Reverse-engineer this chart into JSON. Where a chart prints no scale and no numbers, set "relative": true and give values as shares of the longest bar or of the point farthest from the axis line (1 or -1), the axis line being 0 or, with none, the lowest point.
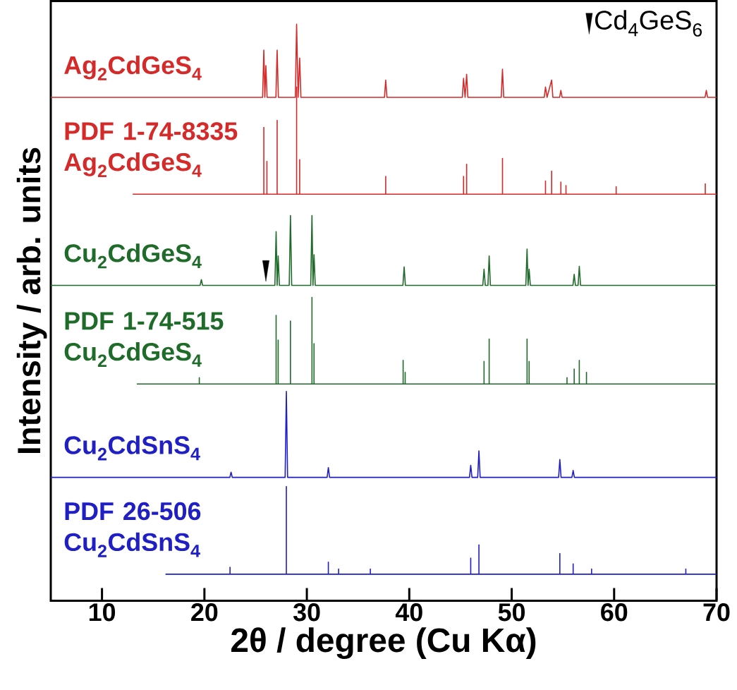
{
  "chart_data": {
    "type": "line",
    "relative": true,
    "xlabel": "2θ / degree (Cu Kα)",
    "ylabel": "Intensity / arb. units",
    "xlim": [
      5,
      70
    ],
    "xticks": [
      10,
      20,
      30,
      40,
      50,
      60,
      70
    ],
    "legend": "top right",
    "series": [
      {
        "name": "Ag$_{2}$CdGeS$_{4}$",
        "color": "#d42a2a",
        "x": [
          5,
          25.68,
          25.8,
          25.9,
          26.0,
          26.12,
          26.98,
          27.1,
          27.22,
          28.88,
          29.0,
          29.15,
          29.3,
          29.42,
          37.58,
          37.7,
          37.82,
          45.18,
          45.3,
          45.45,
          45.6,
          45.72,
          48.98,
          49.1,
          49.22,
          53.18,
          53.3,
          53.45,
          53.9,
          54.02,
          54.68,
          54.8,
          54.92,
          68.88,
          69.0,
          69.12,
          70
        ],
        "values": [
          0.873,
          0.873,
          0.955,
          0.873,
          0.928,
          0.873,
          0.873,
          0.955,
          0.873,
          0.873,
          1,
          0.873,
          0.941,
          0.873,
          0.873,
          0.903,
          0.873,
          0.873,
          0.906,
          0.873,
          0.913,
          0.873,
          0.873,
          0.922,
          0.873,
          0.873,
          0.891,
          0.873,
          0.903,
          0.873,
          0.873,
          0.885,
          0.873,
          0.873,
          0.885,
          0.873,
          0.873
        ]
      },
      {
        "name": "PDF 1-74-8335 Ag$_{2}$CdGeS$_{4}$",
        "color": "#d42a2a",
        "x": [
          13,
          25.8,
          25.8,
          25.8,
          26.1,
          26.1,
          26.1,
          27.1,
          27.1,
          27.1,
          29.0,
          29.0,
          29.0,
          29.3,
          29.3,
          29.3,
          37.7,
          37.7,
          37.7,
          45.3,
          45.3,
          45.3,
          45.6,
          45.6,
          45.6,
          49.1,
          49.1,
          49.1,
          53.3,
          53.3,
          53.3,
          53.9,
          53.9,
          53.9,
          54.8,
          54.8,
          54.8,
          55.3,
          55.3,
          55.3,
          60.2,
          60.2,
          60.2,
          68.9,
          68.9,
          68.9,
          70
        ],
        "values": [
          0.705,
          0.705,
          0.821,
          0.705,
          0.705,
          0.762,
          0.705,
          0.705,
          0.833,
          0.705,
          0.705,
          0.891,
          0.705,
          0.705,
          0.765,
          0.705,
          0.705,
          0.736,
          0.705,
          0.705,
          0.736,
          0.705,
          0.705,
          0.757,
          0.705,
          0.705,
          0.767,
          0.705,
          0.705,
          0.728,
          0.705,
          0.705,
          0.745,
          0.705,
          0.705,
          0.726,
          0.705,
          0.705,
          0.72,
          0.705,
          0.705,
          0.718,
          0.705,
          0.705,
          0.723,
          0.705,
          0.705
        ]
      },
      {
        "name": "Cu$_{2}$CdGeS$_{4}$",
        "color": "#1f6b2a",
        "x": [
          5,
          19.58,
          19.7,
          19.82,
          26.88,
          27.0,
          27.1,
          27.2,
          27.32,
          28.28,
          28.4,
          28.52,
          30.38,
          30.5,
          30.6,
          30.7,
          30.82,
          39.38,
          39.5,
          39.62,
          47.18,
          47.3,
          47.42,
          47.68,
          47.8,
          47.92,
          51.38,
          51.5,
          51.6,
          51.7,
          51.82,
          55.98,
          56.1,
          56.22,
          56.48,
          56.6,
          56.72,
          70
        ],
        "values": [
          0.547,
          0.547,
          0.557,
          0.547,
          0.547,
          0.64,
          0.547,
          0.598,
          0.547,
          0.547,
          0.668,
          0.547,
          0.547,
          0.668,
          0.547,
          0.6,
          0.547,
          0.547,
          0.579,
          0.547,
          0.547,
          0.575,
          0.547,
          0.547,
          0.598,
          0.547,
          0.547,
          0.61,
          0.547,
          0.575,
          0.547,
          0.547,
          0.566,
          0.547,
          0.547,
          0.58,
          0.547,
          0.547
        ]
      },
      {
        "name": "PDF 1-74-515 Cu$_{2}$CdGeS$_{4}$",
        "color": "#1f6b2a",
        "x": [
          13.4,
          19.5,
          19.5,
          19.5,
          27.0,
          27.0,
          27.0,
          27.2,
          27.2,
          27.2,
          28.4,
          28.4,
          28.4,
          30.5,
          30.5,
          30.5,
          30.7,
          30.7,
          30.7,
          39.4,
          39.4,
          39.4,
          39.6,
          39.6,
          39.6,
          47.3,
          47.3,
          47.3,
          47.8,
          47.8,
          47.8,
          51.5,
          51.5,
          51.5,
          51.7,
          51.7,
          51.7,
          55.4,
          55.4,
          55.4,
          56.1,
          56.1,
          56.1,
          56.6,
          56.6,
          56.6,
          57.3,
          57.3,
          57.3,
          70
        ],
        "values": [
          0.376,
          0.376,
          0.387,
          0.376,
          0.376,
          0.495,
          0.376,
          0.376,
          0.452,
          0.376,
          0.376,
          0.485,
          0.376,
          0.376,
          0.526,
          0.376,
          0.376,
          0.446,
          0.376,
          0.376,
          0.417,
          0.376,
          0.376,
          0.396,
          0.376,
          0.376,
          0.415,
          0.376,
          0.376,
          0.454,
          0.376,
          0.376,
          0.454,
          0.376,
          0.376,
          0.415,
          0.376,
          0.376,
          0.387,
          0.376,
          0.376,
          0.402,
          0.376,
          0.376,
          0.417,
          0.376,
          0.376,
          0.396,
          0.376,
          0.376
        ]
      },
      {
        "name": "Cu$_{2}$CdSnS$_{4}$",
        "color": "#1f1fc4",
        "x": [
          5,
          22.48,
          22.6,
          22.72,
          27.88,
          28.0,
          28.12,
          31.98,
          32.1,
          32.22,
          45.88,
          46.0,
          46.12,
          46.68,
          46.8,
          46.92,
          54.58,
          54.7,
          54.82,
          55.88,
          56.0,
          56.12,
          70
        ],
        "values": [
          0.214,
          0.214,
          0.223,
          0.214,
          0.214,
          0.363,
          0.214,
          0.214,
          0.231,
          0.214,
          0.214,
          0.235,
          0.214,
          0.214,
          0.26,
          0.214,
          0.214,
          0.245,
          0.214,
          0.214,
          0.226,
          0.214,
          0.214
        ]
      },
      {
        "name": "PDF 26-506 Cu$_{2}$CdSnS$_{4}$",
        "color": "#1f1fc4",
        "x": [
          16.2,
          22.5,
          22.5,
          22.5,
          28.0,
          28.0,
          28.0,
          32.1,
          32.1,
          32.1,
          33.1,
          33.1,
          33.1,
          36.2,
          36.2,
          36.2,
          46.0,
          46.0,
          46.0,
          46.8,
          46.8,
          46.8,
          54.7,
          54.7,
          54.7,
          56.0,
          56.0,
          56.0,
          57.8,
          57.8,
          57.8,
          67.0,
          67.0,
          67.0,
          70
        ],
        "values": [
          0.046,
          0.046,
          0.058,
          0.046,
          0.046,
          0.198,
          0.046,
          0.046,
          0.067,
          0.046,
          0.046,
          0.055,
          0.046,
          0.046,
          0.055,
          0.046,
          0.046,
          0.074,
          0.046,
          0.046,
          0.097,
          0.046,
          0.046,
          0.082,
          0.046,
          0.046,
          0.064,
          0.046,
          0.046,
          0.055,
          0.046,
          0.046,
          0.055,
          0.046,
          0.046
        ]
      },
      {
        "type": "scatter",
        "name": "Cd$_{4}$GeS$_{6}$",
        "color": "#000000",
        "marker": "triangle",
        "x": [
          26.0
        ],
        "values": [
          0.578
        ]
      }
    ]
  }
}
